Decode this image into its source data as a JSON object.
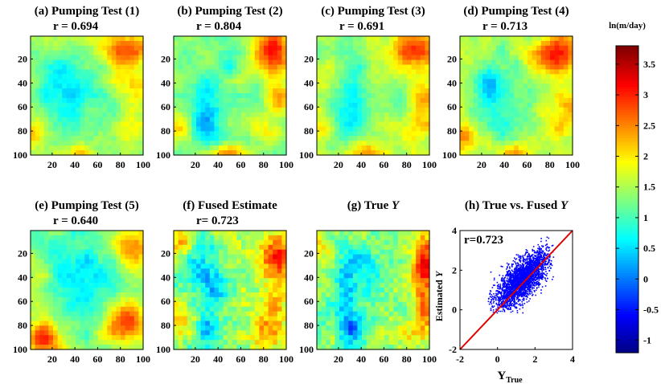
{
  "chart_data": [
    {
      "type": "heatmap",
      "title": "(a) Pumping Test (1)",
      "annotation": "r = 0.694",
      "x_ticks": [
        "20",
        "40",
        "60",
        "80",
        "100"
      ],
      "y_ticks": [
        "20",
        "40",
        "60",
        "80",
        "100"
      ],
      "xlim": [
        1,
        100
      ],
      "ylim": [
        100,
        1
      ],
      "field": "pt1"
    },
    {
      "type": "heatmap",
      "title": "(b) Pumping Test (2)",
      "annotation": "r = 0.804",
      "x_ticks": [
        "20",
        "40",
        "60",
        "80",
        "100"
      ],
      "y_ticks": [
        "20",
        "40",
        "60",
        "80",
        "100"
      ],
      "xlim": [
        1,
        100
      ],
      "ylim": [
        100,
        1
      ],
      "field": "pt2"
    },
    {
      "type": "heatmap",
      "title": "(c) Pumping Test (3)",
      "annotation": "r = 0.691",
      "x_ticks": [
        "20",
        "40",
        "60",
        "80",
        "100"
      ],
      "y_ticks": [
        "20",
        "40",
        "60",
        "80",
        "100"
      ],
      "xlim": [
        1,
        100
      ],
      "ylim": [
        100,
        1
      ],
      "field": "pt3"
    },
    {
      "type": "heatmap",
      "title": "(d) Pumping Test (4)",
      "annotation": "r = 0.713",
      "x_ticks": [
        "20",
        "40",
        "60",
        "80",
        "100"
      ],
      "y_ticks": [
        "20",
        "40",
        "60",
        "80",
        "100"
      ],
      "xlim": [
        1,
        100
      ],
      "ylim": [
        100,
        1
      ],
      "field": "pt4"
    },
    {
      "type": "heatmap",
      "title": "(e) Pumping Test (5)",
      "annotation": "r = 0.640",
      "x_ticks": [
        "20",
        "40",
        "60",
        "80",
        "100"
      ],
      "y_ticks": [
        "20",
        "40",
        "60",
        "80",
        "100"
      ],
      "xlim": [
        1,
        100
      ],
      "ylim": [
        100,
        1
      ],
      "field": "pt5"
    },
    {
      "type": "heatmap",
      "title": "(f) Fused Estimate",
      "annotation": "r= 0.723",
      "x_ticks": [
        "20",
        "40",
        "60",
        "80",
        "100"
      ],
      "y_ticks": [
        "20",
        "40",
        "60",
        "80",
        "100"
      ],
      "xlim": [
        1,
        100
      ],
      "ylim": [
        100,
        1
      ],
      "field": "fused"
    },
    {
      "type": "heatmap",
      "title": "(g) True ",
      "title_italic": "Y",
      "annotation": "",
      "x_ticks": [
        "20",
        "40",
        "60",
        "80",
        "100"
      ],
      "y_ticks": [
        "20",
        "40",
        "60",
        "80",
        "100"
      ],
      "xlim": [
        1,
        100
      ],
      "ylim": [
        100,
        1
      ],
      "field": "true"
    },
    {
      "type": "scatter",
      "title": "(h) True vs. Fused ",
      "title_italic": "Y",
      "annotation": "r=0.723",
      "xlabel": "Y",
      "xlabel_sub": "True",
      "ylabel": "Estimated ",
      "ylabel_italic": "Y",
      "xlim": [
        -2,
        4
      ],
      "ylim": [
        -2,
        4
      ],
      "x_ticks": [
        "-2",
        "0",
        "2",
        "4"
      ],
      "y_ticks": [
        "-2",
        "0",
        "2",
        "4"
      ],
      "reference_line": {
        "from": [
          -2,
          -2
        ],
        "to": [
          4,
          4
        ],
        "color": "#e00000"
      },
      "point_color": "#0000ff",
      "point_cloud": {
        "center": [
          1.3,
          1.5
        ],
        "x_range": [
          -0.5,
          3.0
        ],
        "y_range": [
          -0.2,
          3.7
        ]
      }
    }
  ],
  "colorbar": {
    "label": "ln(m/day)",
    "min": -1.2,
    "max": 3.8,
    "ticks": [
      "3.5",
      "3",
      "2.5",
      "2",
      "1.5",
      "1",
      "0.5",
      "0",
      "-0.5",
      "-1"
    ],
    "tick_values": [
      3.5,
      3,
      2.5,
      2,
      1.5,
      1,
      0.5,
      0,
      -0.5,
      -1
    ]
  }
}
